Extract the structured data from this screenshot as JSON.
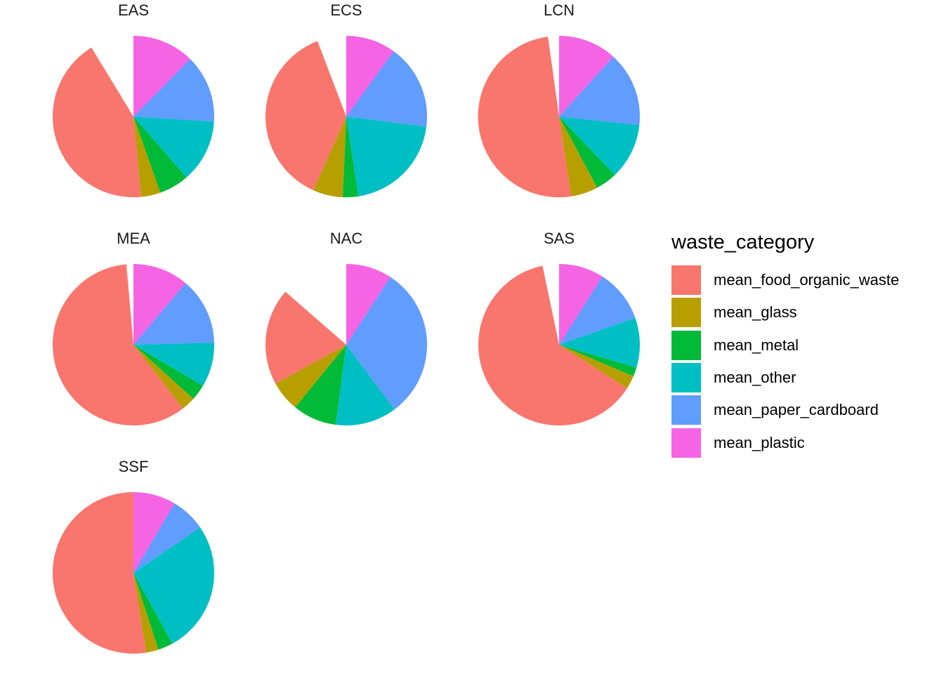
{
  "chart_data": {
    "type": "pie",
    "facet_layout": "grid-3-columns",
    "legend": {
      "title": "waste_category",
      "position": "right",
      "entries": [
        {
          "name": "mean_food_organic_waste",
          "color": "#F8766D"
        },
        {
          "name": "mean_glass",
          "color": "#B79F00"
        },
        {
          "name": "mean_metal",
          "color": "#00BA38"
        },
        {
          "name": "mean_other",
          "color": "#00BFC4"
        },
        {
          "name": "mean_paper_cardboard",
          "color": "#619CFF"
        },
        {
          "name": "mean_plastic",
          "color": "#F564E3"
        }
      ]
    },
    "slice_order": [
      "mean_plastic",
      "mean_paper_cardboard",
      "mean_other",
      "mean_metal",
      "mean_glass",
      "mean_food_organic_waste"
    ],
    "unit": "percent",
    "panels": [
      {
        "title": "EAS",
        "values": {
          "mean_plastic": 12.4,
          "mean_paper_cardboard": 13.6,
          "mean_other": 12.6,
          "mean_metal": 6.0,
          "mean_glass": 3.9,
          "mean_food_organic_waste": 42.8
        }
      },
      {
        "title": "ECS",
        "values": {
          "mean_plastic": 10.0,
          "mean_paper_cardboard": 17.0,
          "mean_other": 20.6,
          "mean_metal": 3.1,
          "mean_glass": 6.0,
          "mean_food_organic_waste": 37.5
        }
      },
      {
        "title": "LCN",
        "values": {
          "mean_plastic": 11.7,
          "mean_paper_cardboard": 15.0,
          "mean_other": 11.2,
          "mean_metal": 4.3,
          "mean_glass": 5.4,
          "mean_food_organic_waste": 50.2
        }
      },
      {
        "title": "MEA",
        "values": {
          "mean_plastic": 11.2,
          "mean_paper_cardboard": 13.4,
          "mean_other": 8.9,
          "mean_metal": 3.2,
          "mean_glass": 2.8,
          "mean_food_organic_waste": 59.1
        }
      },
      {
        "title": "NAC",
        "values": {
          "mean_plastic": 9.2,
          "mean_paper_cardboard": 30.6,
          "mean_other": 12.3,
          "mean_metal": 8.8,
          "mean_glass": 6.1,
          "mean_food_organic_waste": 19.4
        }
      },
      {
        "title": "SAS",
        "values": {
          "mean_plastic": 9.0,
          "mean_paper_cardboard": 10.6,
          "mean_other": 10.0,
          "mean_metal": 1.8,
          "mean_glass": 2.7,
          "mean_food_organic_waste": 62.6
        }
      },
      {
        "title": "SSF",
        "values": {
          "mean_plastic": 8.5,
          "mean_paper_cardboard": 7.0,
          "mean_other": 26.5,
          "mean_metal": 3.0,
          "mean_glass": 2.5,
          "mean_food_organic_waste": 52.5
        }
      }
    ]
  }
}
